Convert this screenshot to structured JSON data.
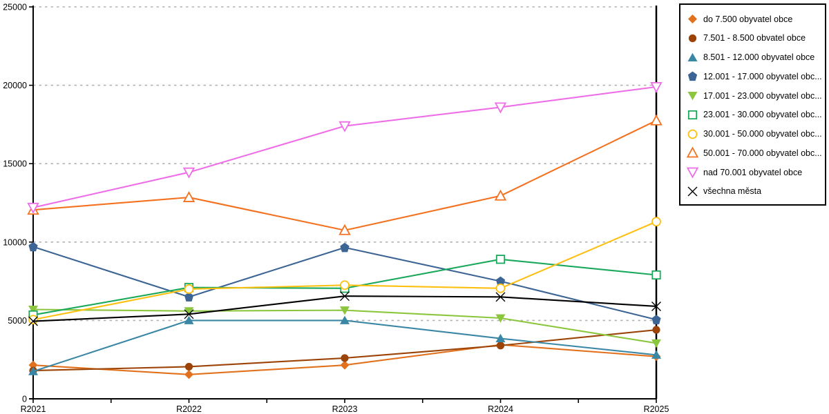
{
  "chart_data": {
    "type": "line",
    "title": "",
    "xlabel": "",
    "ylabel": "",
    "categories": [
      "R2021",
      "R2022",
      "R2023",
      "R2024",
      "R2025"
    ],
    "ylim": [
      0,
      25000
    ],
    "ytick_step": 5000,
    "y_tick_labels": [
      "0",
      "5000",
      "10000",
      "15000",
      "20000",
      "25000"
    ],
    "grid": "horizontal-dashed",
    "grid_color": "#b3b3b3",
    "legend_position": "outside-top-right",
    "series": [
      {
        "name": "do 7.500 obyvatel obce",
        "marker": "diamond",
        "color": "#e2711d",
        "values": [
          2150,
          1550,
          2150,
          3450,
          2700
        ]
      },
      {
        "name": "7.501 - 8.500 obvatel obce",
        "marker": "circle",
        "color": "#9c4408",
        "values": [
          1800,
          2050,
          2600,
          3400,
          4400
        ]
      },
      {
        "name": "8.501 - 12.000 obyvatel obce",
        "marker": "triangle-up",
        "color": "#3a87a5",
        "values": [
          1750,
          5000,
          5000,
          3850,
          2800
        ]
      },
      {
        "name": "12.001 - 17.000 obyvatel obc...",
        "marker": "pentagon",
        "color": "#3c6494",
        "values": [
          9700,
          6500,
          9650,
          7500,
          5050
        ]
      },
      {
        "name": "17.001 - 23.000 obyvatel obc...",
        "marker": "triangle-down",
        "color": "#8cc63e",
        "values": [
          5700,
          5600,
          5650,
          5150,
          3550
        ]
      },
      {
        "name": "23.001 - 30.000 obyvatel obc...",
        "marker": "square-open",
        "color": "#1aa85b",
        "values": [
          5350,
          7100,
          7050,
          8900,
          7900
        ]
      },
      {
        "name": "30.001 - 50.000 obyvatel obc...",
        "marker": "circle-open",
        "color": "#fdc010",
        "values": [
          5050,
          7000,
          7250,
          7050,
          11300
        ]
      },
      {
        "name": "50.001 - 70.000 obyvatel obc...",
        "marker": "triangle-up-open",
        "color": "#f4711f",
        "values": [
          12050,
          12850,
          10750,
          12950,
          17750
        ]
      },
      {
        "name": "nad 70.001 obyvatel obce",
        "marker": "triangle-down-open",
        "color": "#ee6ee8",
        "values": [
          12200,
          14450,
          17400,
          18600,
          19900
        ]
      },
      {
        "name": "všechna města",
        "marker": "x-cross",
        "color": "#000000",
        "values": [
          4950,
          5400,
          6550,
          6500,
          5900
        ]
      }
    ]
  }
}
